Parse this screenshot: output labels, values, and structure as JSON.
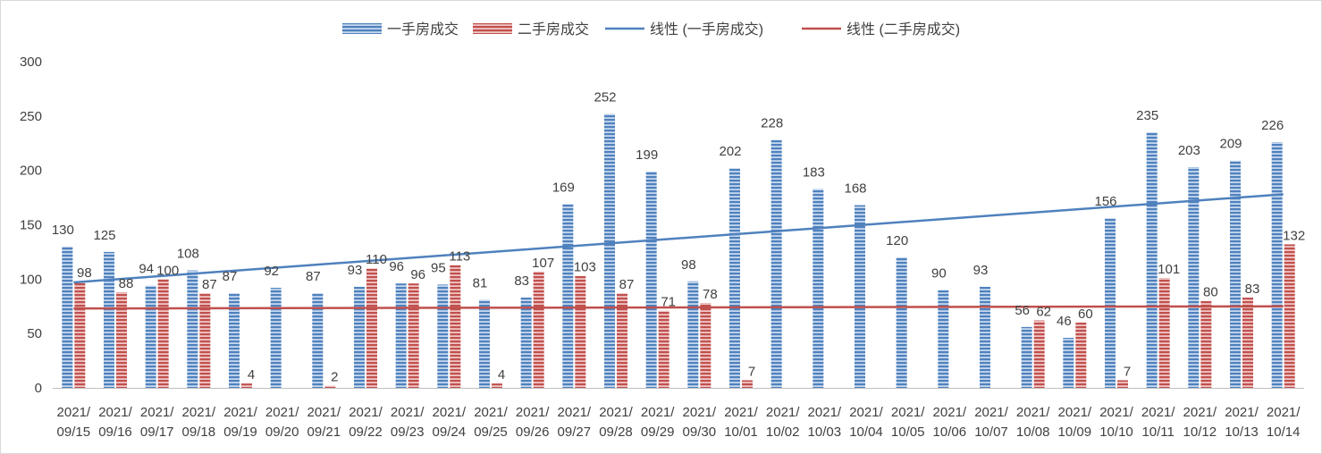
{
  "chart_data": {
    "type": "bar",
    "categories": [
      [
        "2021/",
        "09/15"
      ],
      [
        "2021/",
        "09/16"
      ],
      [
        "2021/",
        "09/17"
      ],
      [
        "2021/",
        "09/18"
      ],
      [
        "2021/",
        "09/19"
      ],
      [
        "2021/",
        "09/20"
      ],
      [
        "2021/",
        "09/21"
      ],
      [
        "2021/",
        "09/22"
      ],
      [
        "2021/",
        "09/23"
      ],
      [
        "2021/",
        "09/24"
      ],
      [
        "2021/",
        "09/25"
      ],
      [
        "2021/",
        "09/26"
      ],
      [
        "2021/",
        "09/27"
      ],
      [
        "2021/",
        "09/28"
      ],
      [
        "2021/",
        "09/29"
      ],
      [
        "2021/",
        "09/30"
      ],
      [
        "2021/",
        "10/01"
      ],
      [
        "2021/",
        "10/02"
      ],
      [
        "2021/",
        "10/03"
      ],
      [
        "2021/",
        "10/04"
      ],
      [
        "2021/",
        "10/05"
      ],
      [
        "2021/",
        "10/06"
      ],
      [
        "2021/",
        "10/07"
      ],
      [
        "2021/",
        "10/08"
      ],
      [
        "2021/",
        "10/09"
      ],
      [
        "2021/",
        "10/10"
      ],
      [
        "2021/",
        "10/11"
      ],
      [
        "2021/",
        "10/12"
      ],
      [
        "2021/",
        "10/13"
      ],
      [
        "2021/",
        "10/14"
      ]
    ],
    "series": [
      {
        "name": "一手房成交",
        "color": "#4f81bd",
        "values": [
          130,
          125,
          94,
          108,
          87,
          92,
          87,
          93,
          96,
          95,
          81,
          83,
          169,
          252,
          199,
          98,
          202,
          228,
          183,
          168,
          120,
          90,
          93,
          56,
          46,
          156,
          235,
          203,
          209,
          226
        ]
      },
      {
        "name": "二手房成交",
        "color": "#c0504d",
        "values": [
          98,
          88,
          100,
          87,
          4,
          null,
          2,
          110,
          96,
          113,
          4,
          107,
          103,
          87,
          71,
          78,
          7,
          null,
          null,
          null,
          null,
          null,
          null,
          62,
          60,
          7,
          101,
          80,
          83,
          132
        ]
      }
    ],
    "trendlines": [
      {
        "name": "线性 (一手房成交)",
        "series": 0,
        "color": "#4f81bd",
        "start": 97,
        "end": 178
      },
      {
        "name": "线性 (二手房成交)",
        "series": 1,
        "color": "#c0504d",
        "start": 73,
        "end": 75
      }
    ],
    "ylim": [
      0,
      300
    ],
    "yticks": [
      0,
      50,
      100,
      150,
      200,
      250,
      300
    ],
    "grid": false,
    "legend_position": "top-center",
    "title": "",
    "xlabel": "",
    "ylabel": ""
  }
}
